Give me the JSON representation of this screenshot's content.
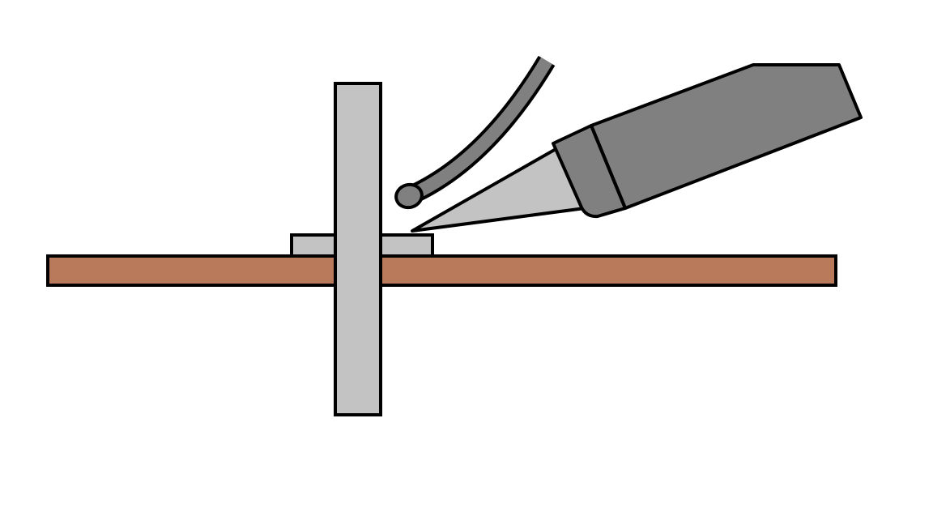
{
  "diagram": {
    "parts": [
      "circuit-board",
      "component-lead",
      "copper-pad",
      "solder-wire",
      "soldering-iron-tip",
      "soldering-iron-collar",
      "soldering-iron-barrel"
    ],
    "colors": {
      "background": "#ffffff",
      "outline": "#000000",
      "board": "#b87a5a",
      "metal_light": "#c3c3c3",
      "metal_dark": "#808080"
    }
  }
}
